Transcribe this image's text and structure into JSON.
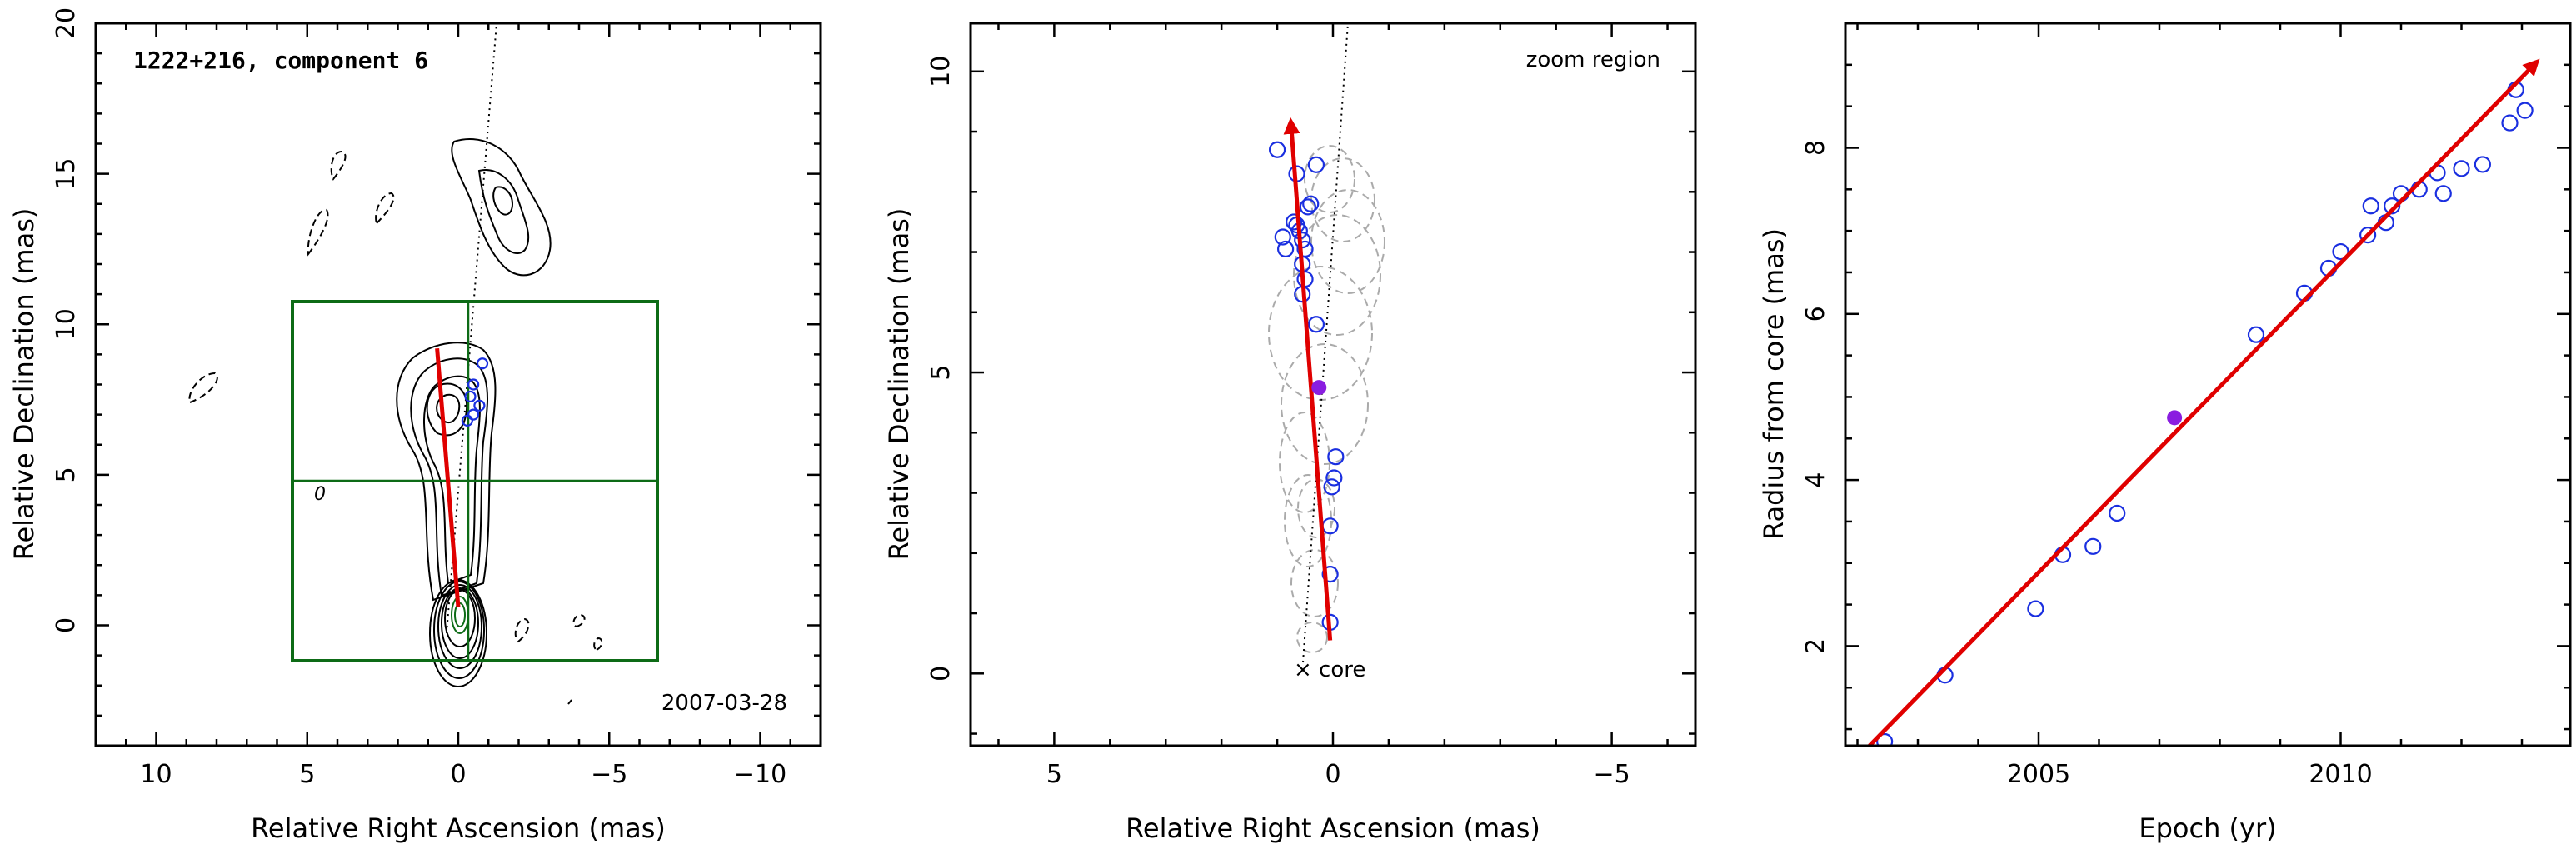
{
  "panel1": {
    "title": "1222+216, component 6",
    "date": "2007-03-28",
    "contour_label": "0",
    "xlabel": "Relative Right Ascension (mas)",
    "ylabel": "Relative Declination (mas)"
  },
  "panel2": {
    "zoom_label": "zoom region",
    "core_label": "× core",
    "xlabel": "Relative Right Ascension (mas)",
    "ylabel": "Relative Declination (mas)"
  },
  "panel3": {
    "xlabel": "Epoch (yr)",
    "ylabel": "Radius from core (mas)"
  },
  "colors": {
    "points": "#1a2fe0",
    "highlight": "#8a1de0",
    "fit": "#e00000",
    "zoom_box": "#0d6b16",
    "beams": "#aaaaaa"
  },
  "chart_data": [
    {
      "type": "scatter",
      "title": "1222+216, component 6",
      "annotation": "2007-03-28",
      "xlabel": "Relative Right Ascension (mas)",
      "ylabel": "Relative Declination (mas)",
      "xlim": [
        12,
        -12
      ],
      "ylim": [
        -4,
        20
      ],
      "xticks": [
        10,
        5,
        0,
        -5,
        -10
      ],
      "yticks": [
        0,
        5,
        10,
        15,
        20
      ],
      "zoom_region": {
        "x": [
          5.5,
          -6.5
        ],
        "y": [
          -1.2,
          10.8
        ],
        "crosshair": [
          0.3,
          4.8
        ]
      },
      "trend": {
        "x": [
          0.0,
          0.7
        ],
        "y": [
          0.6,
          9.2
        ]
      },
      "points": [
        {
          "x": -0.5,
          "y": 8.0
        },
        {
          "x": -0.4,
          "y": 7.6
        },
        {
          "x": -0.7,
          "y": 7.3
        },
        {
          "x": -0.5,
          "y": 7.0
        },
        {
          "x": -0.8,
          "y": 8.7
        },
        {
          "x": -0.3,
          "y": 6.8
        }
      ]
    },
    {
      "type": "scatter",
      "title": "",
      "annotation": "zoom region",
      "xlabel": "Relative Right Ascension (mas)",
      "ylabel": "Relative Declination (mas)",
      "xlim": [
        6.5,
        -6.5
      ],
      "ylim": [
        -1.2,
        10.8
      ],
      "xticks": [
        5,
        0,
        -5
      ],
      "yticks": [
        0,
        5,
        10
      ],
      "trend": {
        "x": [
          0.05,
          0.75
        ],
        "y": [
          0.55,
          9.1
        ]
      },
      "highlight": {
        "x": 0.25,
        "y": 4.75
      },
      "points": [
        {
          "x": 0.05,
          "y": 0.85
        },
        {
          "x": 0.05,
          "y": 1.65
        },
        {
          "x": 0.05,
          "y": 2.45
        },
        {
          "x": 0.02,
          "y": 3.1
        },
        {
          "x": -0.02,
          "y": 3.25
        },
        {
          "x": -0.05,
          "y": 3.6
        },
        {
          "x": 0.3,
          "y": 5.8
        },
        {
          "x": 0.55,
          "y": 6.3
        },
        {
          "x": 0.5,
          "y": 6.55
        },
        {
          "x": 0.55,
          "y": 6.8
        },
        {
          "x": 0.5,
          "y": 7.05
        },
        {
          "x": 0.55,
          "y": 7.2
        },
        {
          "x": 0.6,
          "y": 7.35
        },
        {
          "x": 0.65,
          "y": 7.45
        },
        {
          "x": 0.7,
          "y": 7.5
        },
        {
          "x": 0.45,
          "y": 7.75
        },
        {
          "x": 0.4,
          "y": 7.8
        },
        {
          "x": 0.65,
          "y": 8.3
        },
        {
          "x": 0.3,
          "y": 8.45
        },
        {
          "x": 1.0,
          "y": 8.7
        },
        {
          "x": 0.85,
          "y": 7.05
        },
        {
          "x": 0.9,
          "y": 7.25
        }
      ]
    },
    {
      "type": "scatter",
      "title": "",
      "xlabel": "Epoch (yr)",
      "ylabel": "Radius from core (mas)",
      "xlim": [
        2001.8,
        2013.8
      ],
      "ylim": [
        0.8,
        9.5
      ],
      "xticks": [
        2005,
        2010
      ],
      "yticks": [
        2,
        4,
        6,
        8
      ],
      "trend": {
        "x": [
          2002.2,
          2013.2
        ],
        "y": [
          0.8,
          9.0
        ]
      },
      "highlight": {
        "x": 2007.25,
        "y": 4.75
      },
      "points": [
        {
          "x": 2002.45,
          "y": 0.85
        },
        {
          "x": 2003.45,
          "y": 1.65
        },
        {
          "x": 2004.95,
          "y": 2.45
        },
        {
          "x": 2005.4,
          "y": 3.1
        },
        {
          "x": 2005.9,
          "y": 3.2
        },
        {
          "x": 2006.3,
          "y": 3.6
        },
        {
          "x": 2008.6,
          "y": 5.75
        },
        {
          "x": 2009.4,
          "y": 6.25
        },
        {
          "x": 2009.8,
          "y": 6.55
        },
        {
          "x": 2010.0,
          "y": 6.75
        },
        {
          "x": 2010.45,
          "y": 6.95
        },
        {
          "x": 2010.5,
          "y": 7.3
        },
        {
          "x": 2010.75,
          "y": 7.1
        },
        {
          "x": 2010.85,
          "y": 7.3
        },
        {
          "x": 2011.0,
          "y": 7.45
        },
        {
          "x": 2011.3,
          "y": 7.5
        },
        {
          "x": 2011.6,
          "y": 7.7
        },
        {
          "x": 2011.7,
          "y": 7.45
        },
        {
          "x": 2012.0,
          "y": 7.75
        },
        {
          "x": 2012.35,
          "y": 7.8
        },
        {
          "x": 2012.8,
          "y": 8.3
        },
        {
          "x": 2012.9,
          "y": 8.7
        },
        {
          "x": 2013.05,
          "y": 8.45
        }
      ]
    }
  ]
}
